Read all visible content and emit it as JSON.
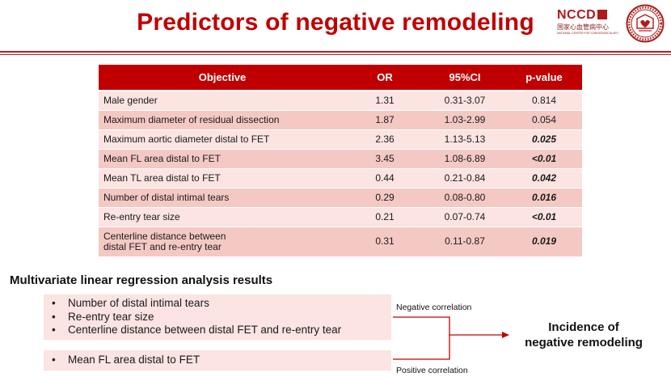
{
  "title": "Predictors of negative remodeling",
  "logo": {
    "ncc_text": "NCCD",
    "ncc_cn": "国家心血管病中心",
    "ncc_en": "NATIONAL CENTER FOR CARDIOVASCULAR DISEASES"
  },
  "table": {
    "headers": [
      "Objective",
      "OR",
      "95%CI",
      "p-value"
    ],
    "rows": [
      {
        "objective": "Male gender",
        "or": "1.31",
        "ci": "0.31-3.07",
        "p": "0.814",
        "bold": false
      },
      {
        "objective": "Maximum diameter of residual dissection",
        "or": "1.87",
        "ci": "1.03-2.99",
        "p": "0.054",
        "bold": false
      },
      {
        "objective": "Maximum aortic diameter distal to FET",
        "or": "2.36",
        "ci": "1.13-5.13",
        "p": "0.025",
        "bold": true
      },
      {
        "objective": "Mean FL area distal to FET",
        "or": "3.45",
        "ci": "1.08-6.89",
        "p": "<0.01",
        "bold": true
      },
      {
        "objective": "Mean TL area distal to FET",
        "or": "0.44",
        "ci": "0.21-0.84",
        "p": "0.042",
        "bold": true
      },
      {
        "objective": "Number of distal intimal tears",
        "or": "0.29",
        "ci": "0.08-0.80",
        "p": "0.016",
        "bold": true
      },
      {
        "objective": "Re-entry tear size",
        "or": "0.21",
        "ci": "0.07-0.74",
        "p": "<0.01",
        "bold": true
      },
      {
        "objective_line1": "Centerline distance between",
        "objective_line2": "distal FET and re-entry tear",
        "or": "0.31",
        "ci": "0.11-0.87",
        "p": "0.019",
        "bold": true
      }
    ]
  },
  "analysis": {
    "title": "Multivariate linear regression analysis results",
    "negative_items": [
      "Number of distal intimal tears",
      "Re-entry tear size",
      "Centerline distance between distal FET and re-entry tear"
    ],
    "positive_items": [
      "Mean FL area distal to FET"
    ],
    "negative_label": "Negative correlation",
    "positive_label": "Positive correlation",
    "result_line1": "Incidence of",
    "result_line2": "negative remodeling",
    "bullet": "•"
  }
}
